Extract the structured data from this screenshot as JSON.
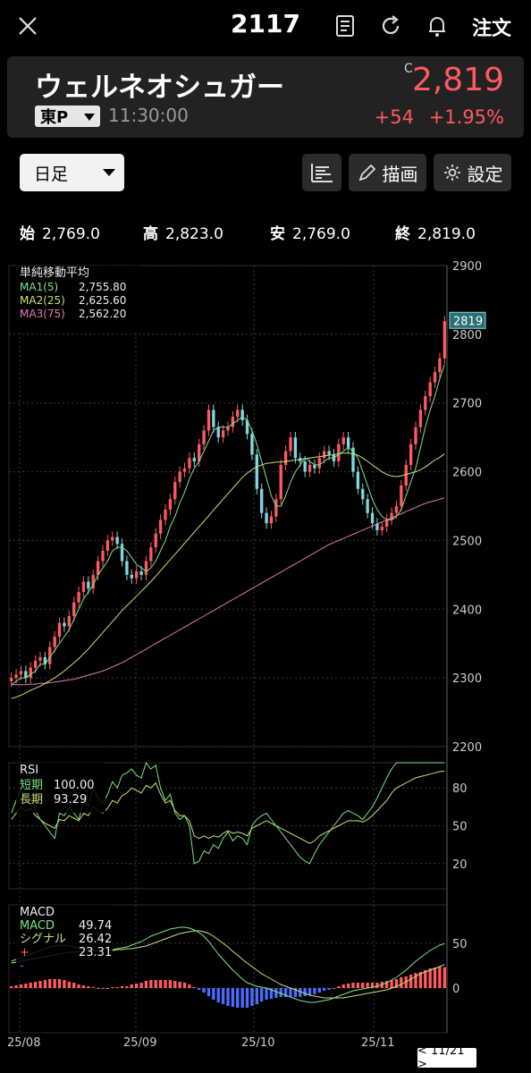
{
  "header": {
    "title": "2117",
    "order_label": "注文",
    "close_icon": "close-icon",
    "news_icon": "document-icon",
    "refresh_icon": "refresh-icon",
    "alert_icon": "bell-icon"
  },
  "stock": {
    "name": "ウェルネオシュガー",
    "market": "東P",
    "time": "11:30:00",
    "price_flag": "C",
    "price": "2,819",
    "change": "+54",
    "change_pct": "+1.95%"
  },
  "toolbar": {
    "period": "日足",
    "draw_label": "描画",
    "settings_label": "設定"
  },
  "ohlc": [
    {
      "label": "始",
      "value": "2,769.0"
    },
    {
      "label": "高",
      "value": "2,823.0"
    },
    {
      "label": "安",
      "value": "2,769.0"
    },
    {
      "label": "終",
      "value": "2,819.0"
    }
  ],
  "legend_ma": {
    "title": "単純移動平均",
    "rows": [
      {
        "label": "MA1(5)",
        "value": "2,755.80",
        "color": "#7de38a"
      },
      {
        "label": "MA2(25)",
        "value": "2,625.60",
        "color": "#c8e07a"
      },
      {
        "label": "MA3(75)",
        "value": "2,562.20",
        "color": "#e07ab8"
      }
    ]
  },
  "legend_rsi": {
    "title": "RSI",
    "rows": [
      {
        "label": "短期",
        "value": "100.00",
        "color": "#7de38a"
      },
      {
        "label": "長期",
        "value": "93.29",
        "color": "#c8e07a"
      }
    ]
  },
  "legend_macd": {
    "title": "MACD",
    "rows": [
      {
        "label": "MACD",
        "value": "49.74",
        "color": "#7de38a"
      },
      {
        "label": "シグナル",
        "value": "26.42",
        "color": "#c8e07a"
      },
      {
        "label": "+",
        "value": "23.31",
        "color": "#ff5a5f"
      },
      {
        "label": "-",
        "value": "",
        "color": "#4a6cff"
      }
    ]
  },
  "price_axis": [
    "2900",
    "2800",
    "2700",
    "2600",
    "2500",
    "2400",
    "2300",
    "2200"
  ],
  "last_price_tag": "2819",
  "rsi_axis": [
    "80",
    "50",
    "20"
  ],
  "macd_axis": [
    "50",
    "0"
  ],
  "x_labels": [
    "25/08",
    "25/09",
    "25/10",
    "25/11"
  ],
  "pager": "< 11/21 >",
  "colors": {
    "up": "#ff5a5f",
    "down": "#7fd8e0",
    "ma1": "#7de38a",
    "ma2": "#c8e07a",
    "ma3": "#e07ab8",
    "hist_pos": "#ff5a5f",
    "hist_neg": "#4a6cff"
  },
  "chart_data": {
    "type": "line",
    "y_range": [
      2200,
      2900
    ],
    "close": [
      2300,
      2305,
      2310,
      2300,
      2315,
      2325,
      2330,
      2320,
      2345,
      2360,
      2380,
      2375,
      2390,
      2410,
      2425,
      2440,
      2430,
      2450,
      2470,
      2485,
      2500,
      2505,
      2495,
      2470,
      2450,
      2445,
      2455,
      2450,
      2470,
      2490,
      2510,
      2530,
      2545,
      2560,
      2585,
      2600,
      2605,
      2620,
      2615,
      2640,
      2660,
      2690,
      2665,
      2650,
      2660,
      2665,
      2680,
      2690,
      2675,
      2655,
      2625,
      2575,
      2540,
      2525,
      2535,
      2560,
      2610,
      2630,
      2650,
      2620,
      2615,
      2600,
      2610,
      2605,
      2620,
      2630,
      2625,
      2615,
      2640,
      2650,
      2635,
      2600,
      2575,
      2560,
      2540,
      2525,
      2515,
      2520,
      2530,
      2540,
      2550,
      2580,
      2610,
      2640,
      2665,
      2690,
      2710,
      2730,
      2745,
      2765,
      2819
    ],
    "ma5": [
      2290,
      2295,
      2300,
      2300,
      2305,
      2310,
      2320,
      2320,
      2330,
      2340,
      2350,
      2360,
      2370,
      2385,
      2400,
      2415,
      2425,
      2435,
      2450,
      2460,
      2470,
      2485,
      2490,
      2490,
      2485,
      2475,
      2465,
      2460,
      2455,
      2460,
      2470,
      2485,
      2500,
      2520,
      2535,
      2555,
      2570,
      2590,
      2605,
      2615,
      2630,
      2645,
      2660,
      2665,
      2665,
      2665,
      2670,
      2675,
      2680,
      2675,
      2660,
      2640,
      2615,
      2590,
      2565,
      2550,
      2550,
      2565,
      2585,
      2600,
      2610,
      2620,
      2615,
      2610,
      2610,
      2615,
      2620,
      2620,
      2625,
      2630,
      2635,
      2630,
      2620,
      2600,
      2580,
      2560,
      2545,
      2535,
      2530,
      2530,
      2535,
      2545,
      2565,
      2585,
      2605,
      2635,
      2665,
      2690,
      2710,
      2735,
      2756
    ],
    "ma25": [
      2270,
      2272,
      2275,
      2278,
      2282,
      2285,
      2288,
      2292,
      2296,
      2300,
      2305,
      2310,
      2316,
      2322,
      2328,
      2335,
      2342,
      2350,
      2358,
      2366,
      2374,
      2382,
      2390,
      2398,
      2405,
      2412,
      2419,
      2426,
      2433,
      2440,
      2448,
      2456,
      2464,
      2472,
      2480,
      2488,
      2496,
      2504,
      2512,
      2520,
      2528,
      2536,
      2544,
      2552,
      2560,
      2568,
      2576,
      2584,
      2592,
      2598,
      2603,
      2607,
      2610,
      2612,
      2613,
      2614,
      2614,
      2615,
      2616,
      2617,
      2618,
      2619,
      2620,
      2621,
      2622,
      2623,
      2624,
      2625,
      2626,
      2627,
      2627,
      2626,
      2624,
      2620,
      2615,
      2610,
      2605,
      2600,
      2596,
      2594,
      2593,
      2594,
      2596,
      2598,
      2600,
      2603,
      2607,
      2612,
      2617,
      2621,
      2626
    ],
    "ma75": [
      2290,
      2290,
      2290,
      2290,
      2291,
      2291,
      2292,
      2292,
      2293,
      2294,
      2295,
      2296,
      2297,
      2298,
      2300,
      2302,
      2304,
      2306,
      2308,
      2310,
      2313,
      2316,
      2319,
      2322,
      2326,
      2330,
      2334,
      2338,
      2342,
      2346,
      2350,
      2354,
      2358,
      2362,
      2366,
      2370,
      2374,
      2378,
      2382,
      2386,
      2390,
      2394,
      2398,
      2402,
      2406,
      2410,
      2414,
      2418,
      2422,
      2426,
      2430,
      2434,
      2438,
      2442,
      2446,
      2450,
      2454,
      2458,
      2462,
      2466,
      2470,
      2474,
      2478,
      2482,
      2486,
      2490,
      2494,
      2497,
      2500,
      2503,
      2506,
      2509,
      2512,
      2515,
      2518,
      2521,
      2524,
      2527,
      2530,
      2533,
      2536,
      2539,
      2542,
      2545,
      2548,
      2551,
      2554,
      2556,
      2558,
      2560,
      2562
    ],
    "rsi_short": [
      60,
      70,
      80,
      72,
      75,
      62,
      55,
      50,
      45,
      40,
      60,
      58,
      65,
      60,
      55,
      70,
      65,
      80,
      72,
      68,
      75,
      85,
      80,
      90,
      92,
      95,
      90,
      88,
      100,
      95,
      98,
      80,
      70,
      75,
      60,
      55,
      58,
      50,
      20,
      22,
      30,
      28,
      35,
      32,
      40,
      45,
      38,
      42,
      40,
      35,
      50,
      55,
      58,
      60,
      55,
      50,
      45,
      40,
      35,
      30,
      25,
      22,
      20,
      28,
      35,
      40,
      45,
      50,
      55,
      60,
      62,
      60,
      58,
      55,
      60,
      65,
      72,
      80,
      88,
      95,
      100,
      100,
      100,
      100,
      100,
      100,
      100,
      100,
      100,
      100,
      100
    ],
    "rsi_long": [
      55,
      60,
      65,
      62,
      64,
      58,
      55,
      52,
      50,
      48,
      55,
      54,
      58,
      56,
      54,
      60,
      58,
      65,
      62,
      60,
      64,
      70,
      68,
      74,
      76,
      80,
      78,
      76,
      82,
      80,
      84,
      75,
      68,
      70,
      62,
      58,
      58,
      54,
      42,
      40,
      42,
      40,
      42,
      41,
      44,
      46,
      44,
      45,
      44,
      42,
      48,
      50,
      52,
      54,
      52,
      50,
      48,
      46,
      44,
      42,
      40,
      38,
      36,
      38,
      42,
      44,
      46,
      48,
      50,
      52,
      54,
      54,
      54,
      53,
      55,
      58,
      62,
      66,
      70,
      76,
      80,
      82,
      84,
      86,
      88,
      89,
      90,
      91,
      92,
      93,
      93.29
    ],
    "macd": [
      30,
      32,
      34,
      36,
      38,
      40,
      42,
      44,
      46,
      47,
      48,
      48,
      47,
      46,
      45,
      44,
      44,
      43,
      42,
      42,
      42,
      43,
      44,
      45,
      46,
      48,
      50,
      52,
      55,
      58,
      60,
      62,
      64,
      66,
      67,
      68,
      68,
      67,
      65,
      62,
      58,
      52,
      45,
      38,
      32,
      26,
      20,
      15,
      10,
      6,
      4,
      2,
      1,
      0,
      -2,
      -4,
      -6,
      -8,
      -10,
      -12,
      -14,
      -15,
      -16,
      -16,
      -15,
      -14,
      -13,
      -11,
      -9,
      -7,
      -5,
      -3,
      -2,
      -1,
      0,
      1,
      2,
      4,
      6,
      9,
      12,
      16,
      20,
      25,
      30,
      34,
      38,
      42,
      45,
      48,
      49.74
    ],
    "signal": [
      28,
      29,
      30,
      31,
      32,
      33,
      34,
      35,
      36,
      37,
      38,
      39,
      40,
      40,
      41,
      41,
      42,
      42,
      42,
      42,
      42,
      42,
      43,
      43,
      44,
      44,
      45,
      46,
      47,
      49,
      51,
      53,
      55,
      57,
      59,
      61,
      62,
      63,
      64,
      64,
      63,
      61,
      58,
      54,
      50,
      46,
      41,
      37,
      32,
      28,
      24,
      20,
      16,
      13,
      10,
      7,
      4,
      2,
      0,
      -2,
      -4,
      -6,
      -8,
      -9,
      -10,
      -11,
      -11,
      -11,
      -11,
      -11,
      -10,
      -9,
      -8,
      -7,
      -6,
      -5,
      -4,
      -3,
      -2,
      0,
      2,
      4,
      7,
      10,
      13,
      16,
      18,
      20,
      22,
      24,
      26.42
    ]
  }
}
